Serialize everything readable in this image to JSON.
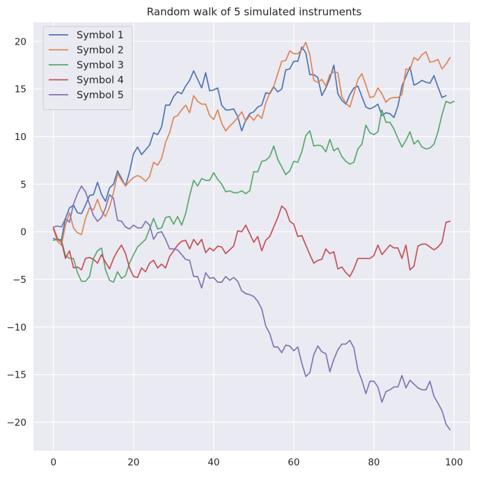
{
  "chart_data": {
    "type": "line",
    "title": "Random walk of 5 simulated instruments",
    "xlabel": "",
    "ylabel": "",
    "xlim": [
      -5,
      104
    ],
    "ylim": [
      -23,
      22
    ],
    "x_ticks": [
      0,
      20,
      40,
      60,
      80,
      100
    ],
    "y_ticks": [
      20,
      15,
      10,
      5,
      0,
      -5,
      -10,
      -15,
      -20
    ],
    "grid": true,
    "legend_position": "top-left",
    "colors": {
      "background": "#eaeaf2",
      "grid": "#ffffff",
      "text": "#262626"
    },
    "series": [
      {
        "name": "Symbol 1",
        "color": "#4c72b0",
        "values": [
          -0.7,
          -0.9,
          -0.8,
          1.4,
          2.5,
          2.8,
          2.0,
          1.9,
          2.8,
          3.8,
          3.9,
          5.2,
          3.9,
          3.2,
          4.6,
          5.0,
          6.4,
          5.6,
          4.8,
          6.3,
          8.2,
          8.9,
          8.1,
          8.6,
          9.1,
          10.4,
          10.2,
          11.0,
          13.3,
          13.3,
          14.2,
          14.7,
          14.5,
          15.3,
          15.9,
          16.9,
          16.0,
          15.1,
          16.7,
          14.8,
          14.9,
          15.1,
          13.3,
          12.8,
          12.8,
          12.9,
          12.1,
          10.6,
          11.7,
          12.4,
          12.6,
          13.1,
          13.3,
          14.6,
          14.5,
          15.2,
          14.7,
          15.0,
          17.0,
          17.1,
          17.9,
          17.9,
          19.4,
          18.8,
          16.5,
          16.5,
          16.2,
          14.3,
          15.1,
          16.1,
          17.5,
          14.5,
          13.8,
          13.4,
          14.4,
          15.1,
          15.3,
          14.2,
          13.1,
          12.9,
          13.1,
          13.4,
          12.2,
          12.5,
          12.4,
          12.0,
          13.2,
          15.3,
          16.3,
          17.3,
          15.4,
          15.6,
          15.9,
          15.7,
          15.6,
          16.4,
          15.2,
          14.1,
          14.3
        ]
      },
      {
        "name": "Symbol 2",
        "color": "#dd8452",
        "values": [
          0.3,
          -1.0,
          -1.4,
          0.7,
          2.0,
          0.4,
          -0.1,
          -0.3,
          1.4,
          2.5,
          2.3,
          3.4,
          2.2,
          1.6,
          2.6,
          4.1,
          6.1,
          5.4,
          4.8,
          5.3,
          5.7,
          5.9,
          5.7,
          5.3,
          5.8,
          7.3,
          7.0,
          7.7,
          9.4,
          10.4,
          12.0,
          12.2,
          12.8,
          13.3,
          12.5,
          14.3,
          13.7,
          13.4,
          13.4,
          12.2,
          11.8,
          12.8,
          11.4,
          10.6,
          11.1,
          11.5,
          12.0,
          12.6,
          11.6,
          12.2,
          11.7,
          12.3,
          11.9,
          13.5,
          14.6,
          15.3,
          16.6,
          17.9,
          18.0,
          19.0,
          18.7,
          18.7,
          19.1,
          19.9,
          18.6,
          15.9,
          15.7,
          16.0,
          15.3,
          16.5,
          16.8,
          16.7,
          14.2,
          13.5,
          13.1,
          14.5,
          16.0,
          16.6,
          15.4,
          14.1,
          14.2,
          15.1,
          14.5,
          13.6,
          14.0,
          14.1,
          14.1,
          14.4,
          17.1,
          17.0,
          18.3,
          18.0,
          18.6,
          18.9,
          17.8,
          17.9,
          18.1,
          17.1,
          17.6,
          18.3
        ]
      },
      {
        "name": "Symbol 3",
        "color": "#55a868",
        "values": [
          -0.9,
          -0.8,
          -0.9,
          -2.5,
          -2.8,
          -2.8,
          -4.3,
          -5.2,
          -5.2,
          -4.7,
          -2.8,
          -2.0,
          -1.7,
          -4.0,
          -5.1,
          -5.3,
          -4.2,
          -4.9,
          -4.6,
          -3.3,
          -2.4,
          -1.6,
          -1.2,
          -0.8,
          0.3,
          1.4,
          0.3,
          0.4,
          1.5,
          1.6,
          0.8,
          1.6,
          0.7,
          1.9,
          3.8,
          5.4,
          4.8,
          5.6,
          5.4,
          5.4,
          6.2,
          5.5,
          5.0,
          4.2,
          4.3,
          4.1,
          4.1,
          4.3,
          4.0,
          4.3,
          6.3,
          6.3,
          7.4,
          7.5,
          7.9,
          9.0,
          7.6,
          6.8,
          6.0,
          6.4,
          7.4,
          7.3,
          8.4,
          10.1,
          10.6,
          9.0,
          9.1,
          9.0,
          8.4,
          9.7,
          8.5,
          8.8,
          7.9,
          7.4,
          7.1,
          7.3,
          8.7,
          9.2,
          11.2,
          10.4,
          10.2,
          10.5,
          12.8,
          11.5,
          11.5,
          10.8,
          9.8,
          8.9,
          9.6,
          10.5,
          9.2,
          9.6,
          8.9,
          8.7,
          8.8,
          9.2,
          10.5,
          12.3,
          13.7,
          13.5,
          13.7
        ]
      },
      {
        "name": "Symbol 4",
        "color": "#c44e52",
        "values": [
          0.4,
          -0.7,
          -1.1,
          -2.8,
          -2.0,
          -3.8,
          -3.7,
          -4.0,
          -2.8,
          -2.7,
          -2.9,
          -3.3,
          -2.4,
          -3.2,
          -3.9,
          -2.8,
          -2.0,
          -1.4,
          -2.3,
          -3.8,
          -4.7,
          -4.8,
          -3.8,
          -4.2,
          -3.3,
          -3.0,
          -3.8,
          -3.4,
          -3.8,
          -2.6,
          -2.0,
          -1.4,
          -1.0,
          -0.9,
          -1.8,
          -0.8,
          -1.4,
          -0.8,
          -2.2,
          -1.7,
          -2.0,
          -1.5,
          -1.6,
          -2.3,
          -1.9,
          -1.5,
          0.1,
          0.0,
          0.7,
          -0.2,
          -1.1,
          -0.5,
          -2.0,
          -0.9,
          -0.5,
          0.5,
          1.5,
          2.7,
          2.3,
          1.1,
          0.8,
          -0.5,
          -0.4,
          -1.4,
          -2.4,
          -3.3,
          -3.0,
          -2.9,
          -1.8,
          -2.3,
          -2.1,
          -3.9,
          -3.7,
          -4.3,
          -4.7,
          -3.9,
          -2.8,
          -2.8,
          -2.8,
          -2.8,
          -2.5,
          -1.4,
          -2.4,
          -1.9,
          -1.4,
          -1.7,
          -1.7,
          -2.8,
          -1.4,
          -4.0,
          -3.6,
          -1.5,
          -1.3,
          -1.3,
          -1.6,
          -1.9,
          -1.6,
          -1.1,
          1.0,
          1.1
        ]
      },
      {
        "name": "Symbol 5",
        "color": "#8172b3",
        "values": [
          0.5,
          0.6,
          0.5,
          1.4,
          1.0,
          2.9,
          4.0,
          4.8,
          4.2,
          2.9,
          1.7,
          1.1,
          1.5,
          2.5,
          3.9,
          3.5,
          1.2,
          1.1,
          0.5,
          0.3,
          0.7,
          0.4,
          0.4,
          1.1,
          0.7,
          -0.8,
          -0.1,
          0.0,
          -0.8,
          -1.8,
          -1.8,
          -1.9,
          -2.4,
          -2.9,
          -3.0,
          -4.7,
          -4.7,
          -5.9,
          -4.3,
          -4.9,
          -4.8,
          -5.3,
          -5.3,
          -4.7,
          -5.1,
          -4.8,
          -5.2,
          -6.2,
          -6.5,
          -6.6,
          -6.8,
          -7.3,
          -8.1,
          -9.9,
          -10.7,
          -12.1,
          -12.1,
          -12.7,
          -11.9,
          -12.0,
          -12.5,
          -12.1,
          -13.8,
          -15.2,
          -14.8,
          -12.9,
          -12.0,
          -12.6,
          -12.8,
          -14.7,
          -13.4,
          -12.4,
          -11.8,
          -11.8,
          -11.4,
          -12.2,
          -14.5,
          -15.6,
          -17.0,
          -15.7,
          -15.7,
          -16.3,
          -17.9,
          -16.8,
          -16.6,
          -16.3,
          -16.3,
          -15.1,
          -16.4,
          -15.6,
          -16.0,
          -16.4,
          -16.6,
          -16.6,
          -15.7,
          -17.3,
          -18.0,
          -18.8,
          -20.2,
          -20.8
        ]
      }
    ]
  }
}
